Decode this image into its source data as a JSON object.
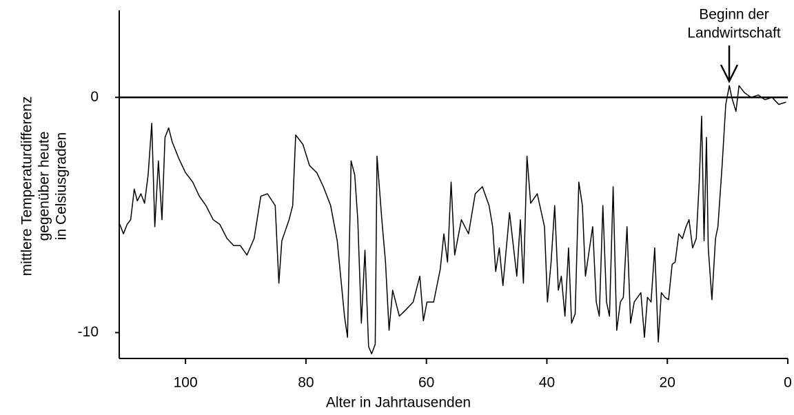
{
  "chart_data": {
    "type": "line",
    "y_label": [
      "mittlere Temperaturdifferenz",
      "gegenüber heute",
      "in Celsiusgraden"
    ],
    "x_label": "Alter in Jahrtausenden",
    "annotation": [
      "Beginn der",
      "Landwirtschaft"
    ],
    "color": "#000000",
    "xlim": [
      111,
      0
    ],
    "xticks": [
      100,
      80,
      60,
      40,
      20,
      0
    ],
    "ylim": [
      -11.1,
      3.7
    ],
    "yticks": [
      0,
      -10
    ],
    "hline": 0,
    "x": [
      110.9,
      110.3,
      109.7,
      109.1,
      108.5,
      108,
      107.4,
      106.8,
      106.2,
      105.6,
      105.1,
      104.5,
      103.9,
      103.4,
      102.8,
      102.2,
      101.1,
      100,
      98.8,
      97.7,
      96.6,
      95.4,
      94.3,
      93.1,
      92,
      90.9,
      89.8,
      88.6,
      87.5,
      86.4,
      85.1,
      84.5,
      84,
      82.8,
      82.2,
      81.7,
      80.5,
      79.4,
      78.2,
      77.1,
      75.9,
      74.8,
      73.6,
      73.1,
      72.5,
      71.9,
      71.4,
      70.8,
      70.2,
      69.6,
      69.1,
      68.5,
      68.2,
      67.4,
      66.8,
      66.2,
      65.6,
      64.5,
      63.3,
      62.2,
      61.1,
      60.5,
      59.9,
      58.8,
      57.7,
      57.1,
      56.5,
      55.9,
      55.3,
      54.2,
      53,
      51.9,
      50.7,
      49.6,
      49,
      48.5,
      47.9,
      47.3,
      46.2,
      45,
      44.4,
      43.9,
      43.3,
      42.7,
      41.6,
      40.4,
      39.9,
      39.3,
      38.7,
      38.1,
      37.6,
      37,
      36.4,
      35.9,
      35.3,
      34.7,
      34.1,
      33.6,
      32.4,
      31.8,
      31.3,
      30.7,
      30.1,
      29.6,
      29,
      28.4,
      27.8,
      27.3,
      26.7,
      26.1,
      25.5,
      24.4,
      23.8,
      23.3,
      22.7,
      22.1,
      21.5,
      21,
      20.4,
      19.8,
      19.2,
      18.7,
      18.1,
      17.5,
      16.9,
      16.4,
      15.8,
      15.2,
      14.7,
      14.3,
      13.9,
      13.5,
      13.2,
      12.6,
      12,
      11.6,
      10.9,
      10.3,
      9.7,
      9.3,
      8.6,
      8.1,
      7.2,
      6.1,
      4.9,
      3.8,
      2.6,
      1.5,
      0.3
    ],
    "values": [
      -5.4,
      -5.8,
      -5.4,
      -5.2,
      -3.9,
      -4.4,
      -4.1,
      -4.5,
      -3.3,
      -1.1,
      -5.5,
      -2.7,
      -5.2,
      -1.7,
      -1.3,
      -1.9,
      -2.6,
      -3.2,
      -3.6,
      -4.2,
      -4.6,
      -5.2,
      -5.4,
      -6.0,
      -6.3,
      -6.3,
      -6.7,
      -6.0,
      -4.2,
      -4.1,
      -4.6,
      -7.9,
      -6.1,
      -5.2,
      -4.6,
      -1.6,
      -2.0,
      -2.9,
      -3.2,
      -3.8,
      -4.6,
      -6.1,
      -9.3,
      -10.2,
      -2.7,
      -3.3,
      -5.2,
      -9.6,
      -6.5,
      -10.6,
      -10.9,
      -10.5,
      -2.5,
      -5.2,
      -7.0,
      -9.9,
      -8.2,
      -9.3,
      -9.0,
      -8.7,
      -7.6,
      -9.5,
      -8.7,
      -8.7,
      -7.3,
      -5.8,
      -7.0,
      -3.6,
      -6.7,
      -5.2,
      -5.8,
      -4.1,
      -3.8,
      -4.6,
      -5.5,
      -7.4,
      -6.4,
      -8.0,
      -4.9,
      -7.6,
      -5.2,
      -7.9,
      -2.5,
      -4.5,
      -4.1,
      -5.5,
      -8.7,
      -7.0,
      -4.6,
      -8.2,
      -7.6,
      -9.3,
      -6.4,
      -9.6,
      -9.2,
      -3.6,
      -4.6,
      -7.6,
      -5.5,
      -8.7,
      -9.3,
      -4.6,
      -8.7,
      -9.3,
      -3.8,
      -9.9,
      -8.7,
      -8.5,
      -5.5,
      -9.6,
      -8.7,
      -8.3,
      -10.2,
      -8.5,
      -8.7,
      -6.4,
      -10.4,
      -8.3,
      -8.5,
      -8.6,
      -7.1,
      -7.0,
      -5.8,
      -6.0,
      -5.5,
      -5.2,
      -6.4,
      -6.0,
      -3.6,
      -0.8,
      -6.1,
      -1.7,
      -6.4,
      -8.6,
      -6.0,
      -5.5,
      -2.9,
      -0.3,
      0.5,
      0.0,
      -0.6,
      0.5,
      0.2,
      0.0,
      0.1,
      -0.1,
      0.0,
      -0.3,
      -0.2
    ]
  }
}
